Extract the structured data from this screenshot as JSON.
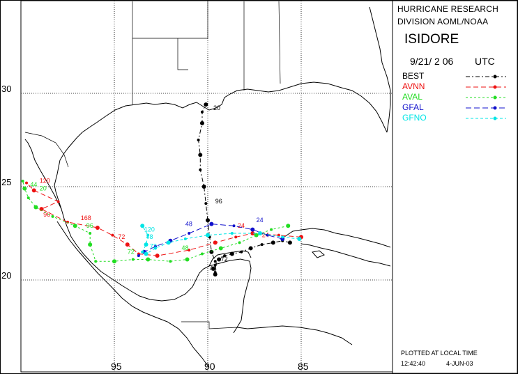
{
  "header": {
    "line1": "HURRICANE RESEARCH",
    "line2": "DIVISION AOML/NOAA",
    "storm_name": "ISIDORE",
    "date": "9/21/ 2 06",
    "utc": "UTC"
  },
  "legend": [
    {
      "name": "BEST",
      "color": "#000000",
      "dash": "6,3,2,3"
    },
    {
      "name": "AVNN",
      "color": "#ee1111",
      "dash": "7,4"
    },
    {
      "name": "AVAL",
      "color": "#22dd22",
      "dash": "3,3"
    },
    {
      "name": "GFAL",
      "color": "#1111cc",
      "dash": "8,4"
    },
    {
      "name": "GFNO",
      "color": "#00e5e5",
      "dash": "4,3"
    }
  ],
  "footer": {
    "note": "PLOTTED AT LOCAL TIME",
    "time": "12:42:40",
    "date": "4-JUN-03"
  },
  "axes": {
    "lat_labels": [
      "30",
      "25",
      "20"
    ],
    "lon_labels": [
      "95",
      "90",
      "85"
    ]
  },
  "tracks": [
    {
      "name": "BEST",
      "color": "#000000",
      "points": [
        [
          -85.6,
          22.0
        ],
        [
          -86.0,
          22.1
        ],
        [
          -86.5,
          22.0
        ],
        [
          -87.1,
          21.9
        ],
        [
          -87.7,
          21.7
        ],
        [
          -88.2,
          21.5
        ],
        [
          -88.7,
          21.4
        ],
        [
          -89.1,
          21.3
        ],
        [
          -89.4,
          21.1
        ],
        [
          -89.6,
          20.8
        ],
        [
          -89.7,
          20.6
        ],
        [
          -89.6,
          20.4
        ],
        [
          -89.6,
          20.3
        ],
        [
          -89.6,
          21.0
        ],
        [
          -89.8,
          21.5
        ],
        [
          -89.9,
          22.3
        ],
        [
          -90.0,
          23.2
        ],
        [
          -90.1,
          24.1
        ],
        [
          -90.2,
          25.0
        ],
        [
          -90.4,
          25.9
        ],
        [
          -90.4,
          26.7
        ],
        [
          -90.5,
          27.5
        ],
        [
          -90.3,
          28.4
        ],
        [
          -90.3,
          29.0
        ],
        [
          -90.1,
          29.4
        ]
      ],
      "labels": [
        {
          "text": "72",
          "at": [
            -89.3,
            21.0
          ]
        },
        {
          "text": "48",
          "at": [
            -89.9,
            20.5
          ]
        },
        {
          "text": "96",
          "at": [
            -89.6,
            24.1
          ]
        },
        {
          "text": "20",
          "at": [
            -89.7,
            29.1
          ]
        }
      ]
    },
    {
      "name": "AVNN",
      "color": "#ee1111",
      "points": [
        [
          -85.0,
          22.3
        ],
        [
          -86.2,
          22.4
        ],
        [
          -87.6,
          22.5
        ],
        [
          -88.5,
          22.3
        ],
        [
          -89.6,
          22.0
        ],
        [
          -91.0,
          21.6
        ],
        [
          -92.7,
          21.3
        ],
        [
          -93.7,
          21.4
        ],
        [
          -94.3,
          21.9
        ],
        [
          -95.1,
          22.4
        ],
        [
          -95.9,
          22.8
        ],
        [
          -97.5,
          23.1
        ],
        [
          -98.9,
          23.8
        ],
        [
          -98.0,
          24.2
        ],
        [
          -99.3,
          24.8
        ],
        [
          -99.7,
          25.2
        ]
      ],
      "labels": [
        {
          "text": "24",
          "at": [
            -88.4,
            22.8
          ]
        },
        {
          "text": "24",
          "at": [
            -87.1,
            22.3
          ]
        },
        {
          "text": "72",
          "at": [
            -94.8,
            22.2
          ]
        },
        {
          "text": "96",
          "at": [
            -98.8,
            23.4
          ]
        },
        {
          "text": "168",
          "at": [
            -96.8,
            23.2
          ]
        },
        {
          "text": "120",
          "at": [
            -99.0,
            25.2
          ]
        }
      ]
    },
    {
      "name": "AVAL",
      "color": "#22dd22",
      "points": [
        [
          -85.7,
          22.9
        ],
        [
          -86.6,
          22.7
        ],
        [
          -87.4,
          22.4
        ],
        [
          -88.3,
          22.0
        ],
        [
          -89.3,
          21.7
        ],
        [
          -90.3,
          21.4
        ],
        [
          -91.1,
          21.1
        ],
        [
          -92.0,
          21.0
        ],
        [
          -93.2,
          21.1
        ],
        [
          -94.0,
          21.1
        ],
        [
          -95.0,
          21.0
        ],
        [
          -96.0,
          21.0
        ],
        [
          -96.3,
          21.9
        ],
        [
          -96.3,
          22.5
        ],
        [
          -97.1,
          22.9
        ],
        [
          -98.3,
          23.4
        ],
        [
          -99.2,
          23.9
        ],
        [
          -99.6,
          24.4
        ],
        [
          -99.8,
          24.9
        ],
        [
          -99.9,
          25.3
        ]
      ],
      "labels": [
        {
          "text": "48",
          "at": [
            -91.4,
            21.6
          ]
        },
        {
          "text": "96",
          "at": [
            -96.5,
            22.8
          ]
        },
        {
          "text": "72",
          "at": [
            -94.3,
            21.4
          ]
        },
        {
          "text": "20",
          "at": [
            -99.0,
            24.8
          ]
        },
        {
          "text": "44",
          "at": [
            -99.5,
            25.0
          ]
        }
      ]
    },
    {
      "name": "GFAL",
      "color": "#1111cc",
      "points": [
        [
          -86.0,
          22.2
        ],
        [
          -86.8,
          22.4
        ],
        [
          -87.6,
          22.7
        ],
        [
          -88.6,
          22.9
        ],
        [
          -89.8,
          23.0
        ],
        [
          -91.0,
          22.5
        ],
        [
          -92.0,
          22.1
        ],
        [
          -92.8,
          21.8
        ],
        [
          -93.4,
          21.5
        ],
        [
          -93.7,
          21.3
        ]
      ],
      "labels": [
        {
          "text": "24",
          "at": [
            -87.4,
            23.1
          ]
        },
        {
          "text": "48",
          "at": [
            -91.2,
            22.9
          ]
        }
      ]
    },
    {
      "name": "GFNO",
      "color": "#00e5e5",
      "points": [
        [
          -85.1,
          22.2
        ],
        [
          -86.0,
          22.3
        ],
        [
          -87.2,
          22.5
        ],
        [
          -88.7,
          22.5
        ],
        [
          -90.0,
          22.4
        ],
        [
          -91.2,
          22.2
        ],
        [
          -92.1,
          22.0
        ],
        [
          -92.8,
          21.7
        ],
        [
          -93.3,
          21.4
        ],
        [
          -93.5,
          21.5
        ],
        [
          -93.3,
          21.9
        ],
        [
          -93.2,
          22.4
        ],
        [
          -93.5,
          22.9
        ]
      ],
      "labels": [
        {
          "text": "120",
          "at": [
            -93.4,
            22.6
          ]
        },
        {
          "text": "48",
          "at": [
            -93.3,
            22.2
          ]
        },
        {
          "text": "72",
          "at": [
            -93.1,
            21.7
          ]
        }
      ]
    }
  ]
}
